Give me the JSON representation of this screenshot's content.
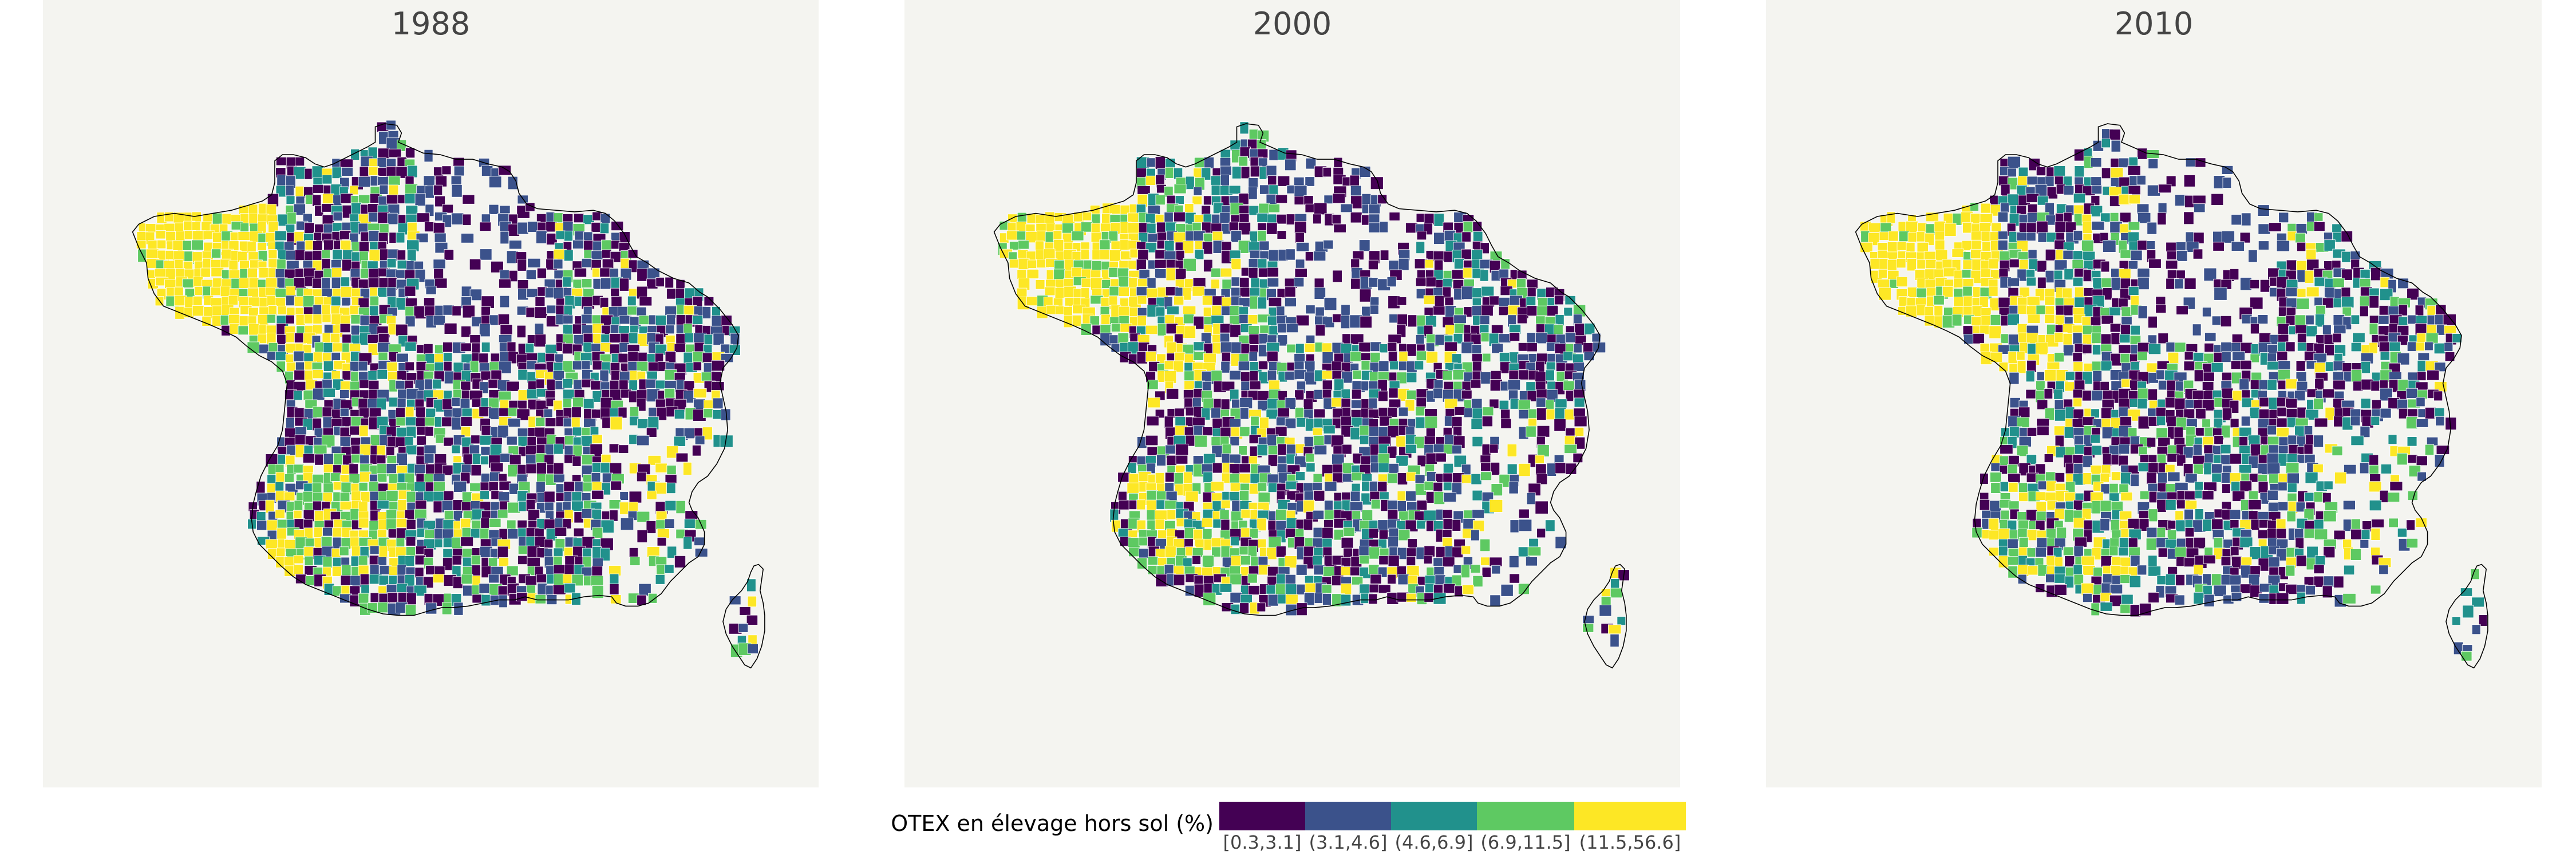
{
  "maps": [
    {
      "title": "1988",
      "seed": 1988
    },
    {
      "title": "2000",
      "seed": 2000
    },
    {
      "title": "2010",
      "seed": 2010
    }
  ],
  "legend": {
    "title": "OTEX en élevage hors sol (%)",
    "classes": [
      {
        "label": "[0.3,3.1]",
        "color": "#440154"
      },
      {
        "label": "(3.1,4.6]",
        "color": "#3b528b"
      },
      {
        "label": "(4.6,6.9]",
        "color": "#21918c"
      },
      {
        "label": "(6.9,11.5]",
        "color": "#5ec962"
      },
      {
        "label": "(11.5,56.6]",
        "color": "#fde725"
      }
    ]
  },
  "colors": {
    "panel_background": "#f4f4f0",
    "outline": "#000000",
    "cell_border": "#ffffff"
  }
}
